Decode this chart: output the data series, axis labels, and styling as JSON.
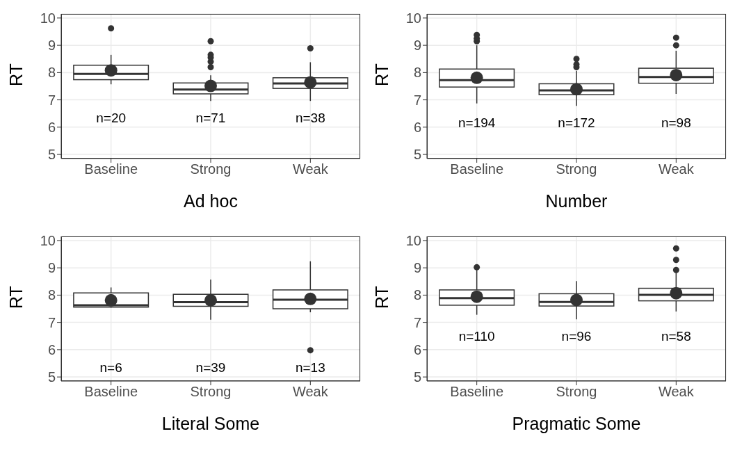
{
  "chart_data": [
    {
      "type": "box",
      "xlabel": "Ad hoc",
      "ylabel": "RT",
      "categories": [
        "Baseline",
        "Strong",
        "Weak"
      ],
      "color": "#333333",
      "ylim": [
        4.85,
        10.15
      ],
      "yticks": [
        5,
        6,
        7,
        8,
        9,
        10
      ],
      "grid": true,
      "boxes": [
        {
          "low": 7.57,
          "q1": 7.74,
          "median": 7.95,
          "q3": 8.27,
          "high": 8.65,
          "mean": 8.08,
          "outliers": [
            9.62
          ]
        },
        {
          "low": 6.96,
          "q1": 7.22,
          "median": 7.38,
          "q3": 7.62,
          "high": 7.9,
          "mean": 7.51,
          "outliers": [
            8.2,
            8.4,
            8.55,
            8.65,
            9.15
          ]
        },
        {
          "low": 6.96,
          "q1": 7.42,
          "median": 7.6,
          "q3": 7.81,
          "high": 8.38,
          "mean": 7.64,
          "outliers": [
            8.89
          ]
        }
      ],
      "annotations": [
        "n=20",
        "n=71",
        "n=38"
      ]
    },
    {
      "type": "box",
      "xlabel": "Number",
      "ylabel": "RT",
      "categories": [
        "Baseline",
        "Strong",
        "Weak"
      ],
      "color": "#333333",
      "ylim": [
        4.85,
        10.15
      ],
      "yticks": [
        5,
        6,
        7,
        8,
        9,
        10
      ],
      "grid": true,
      "boxes": [
        {
          "low": 6.87,
          "q1": 7.47,
          "median": 7.72,
          "q3": 8.13,
          "high": 9.0,
          "mean": 7.81,
          "outliers": [
            9.15,
            9.25,
            9.38
          ]
        },
        {
          "low": 6.78,
          "q1": 7.19,
          "median": 7.35,
          "q3": 7.59,
          "high": 8.07,
          "mean": 7.39,
          "outliers": [
            8.2,
            8.3,
            8.5
          ]
        },
        {
          "low": 7.22,
          "q1": 7.61,
          "median": 7.84,
          "q3": 8.16,
          "high": 8.8,
          "mean": 7.91,
          "outliers": [
            9.0,
            9.28
          ]
        }
      ],
      "annotations": [
        "n=194",
        "n=172",
        "n=98"
      ]
    },
    {
      "type": "box",
      "xlabel": "Literal Some",
      "ylabel": "RT",
      "categories": [
        "Baseline",
        "Strong",
        "Weak"
      ],
      "color": "#333333",
      "ylim": [
        4.85,
        10.15
      ],
      "yticks": [
        5,
        6,
        7,
        8,
        9,
        10
      ],
      "grid": true,
      "boxes": [
        {
          "low": 7.54,
          "q1": 7.56,
          "median": 7.63,
          "q3": 8.08,
          "high": 8.28,
          "mean": 7.81
        },
        {
          "low": 7.1,
          "q1": 7.59,
          "median": 7.74,
          "q3": 8.03,
          "high": 8.57,
          "mean": 7.81
        },
        {
          "low": 7.37,
          "q1": 7.5,
          "median": 7.83,
          "q3": 8.19,
          "high": 9.24,
          "mean": 7.86,
          "outliers": [
            5.98
          ]
        }
      ],
      "annotations": [
        "n=6",
        "n=39",
        "n=13"
      ]
    },
    {
      "type": "box",
      "xlabel": "Pragmatic Some",
      "ylabel": "RT",
      "categories": [
        "Baseline",
        "Strong",
        "Weak"
      ],
      "color": "#333333",
      "ylim": [
        4.85,
        10.15
      ],
      "yticks": [
        5,
        6,
        7,
        8,
        9,
        10
      ],
      "grid": true,
      "boxes": [
        {
          "low": 7.28,
          "q1": 7.63,
          "median": 7.89,
          "q3": 8.19,
          "high": 8.94,
          "mean": 7.94,
          "outliers": [
            9.02
          ]
        },
        {
          "low": 7.11,
          "q1": 7.6,
          "median": 7.75,
          "q3": 8.05,
          "high": 8.51,
          "mean": 7.82
        },
        {
          "low": 7.4,
          "q1": 7.79,
          "median": 8.01,
          "q3": 8.25,
          "high": 8.85,
          "mean": 8.07,
          "outliers": [
            8.92,
            9.29,
            9.71
          ]
        }
      ],
      "annotations": [
        "n=110",
        "n=96",
        "n=58"
      ]
    }
  ]
}
